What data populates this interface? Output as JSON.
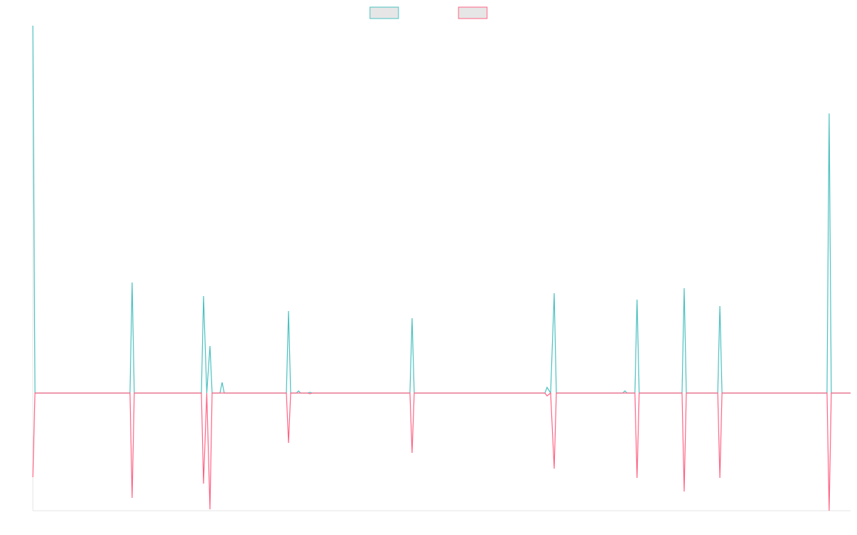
{
  "chart_data": {
    "type": "line",
    "x": [
      0,
      3,
      136,
      139,
      142,
      236,
      239,
      243.5,
      248,
      251,
      262,
      265,
      268,
      355,
      358,
      361,
      369,
      372,
      375,
      385,
      388,
      391,
      528,
      531,
      534,
      717,
      720,
      725,
      730,
      733,
      826,
      829,
      832,
      843,
      846,
      849,
      909,
      912,
      915,
      959,
      962,
      965,
      1112,
      1115,
      1118,
      1145
    ],
    "series": [
      {
        "color": "#4bc0c0",
        "values": [
          515,
          0,
          0,
          155,
          0,
          0,
          136,
          0,
          66,
          0,
          0,
          15,
          0,
          0,
          115,
          0,
          0,
          3,
          0,
          0,
          1,
          0,
          0,
          105,
          0,
          0,
          8,
          0,
          140,
          0,
          0,
          3,
          0,
          0,
          131,
          0,
          0,
          147,
          0,
          0,
          122,
          0,
          0,
          392,
          0,
          0
        ]
      },
      {
        "color": "#ff6384",
        "values": [
          -118,
          0,
          0,
          -147,
          0,
          0,
          -127,
          0,
          -163,
          0,
          0,
          0,
          0,
          0,
          -70,
          0,
          0,
          0,
          0,
          0,
          -1,
          0,
          0,
          -84,
          0,
          0,
          -4,
          0,
          -106,
          0,
          0,
          0,
          0,
          0,
          -119,
          0,
          0,
          -138,
          0,
          0,
          -119,
          0,
          0,
          -165,
          0,
          0
        ]
      }
    ],
    "xlim": [
      0,
      1145
    ],
    "ylim": [
      -165,
      515
    ],
    "grid": false,
    "legend": "top"
  }
}
